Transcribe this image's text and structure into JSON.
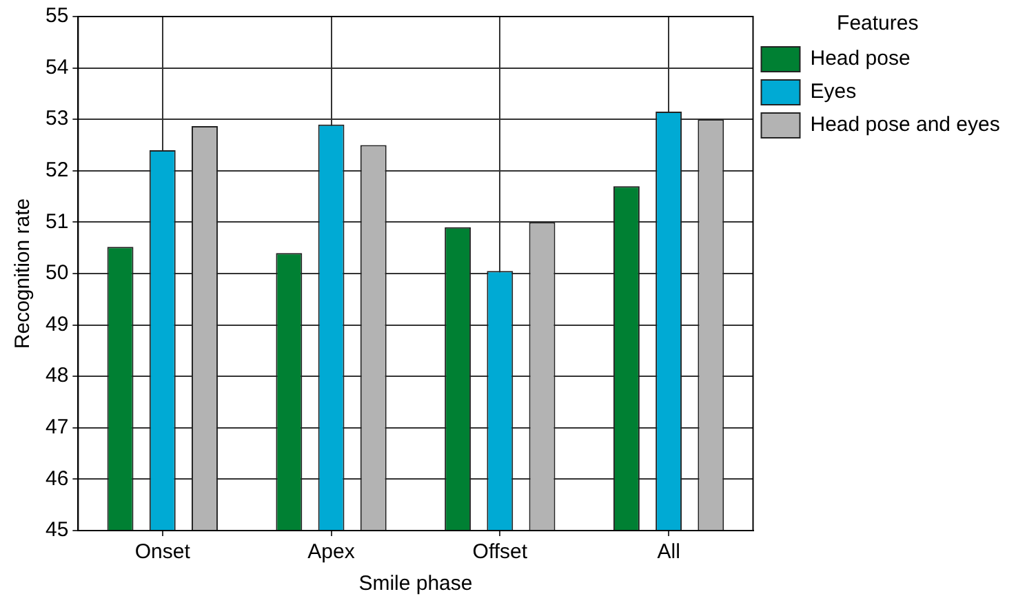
{
  "chart_data": {
    "type": "bar",
    "xlabel": "Smile phase",
    "ylabel": "Recognition rate",
    "legend_title": "Features",
    "categories": [
      "Onset",
      "Apex",
      "Offset",
      "All"
    ],
    "series": [
      {
        "name": "Head pose",
        "color": "#008033",
        "values": [
          50.52,
          50.4,
          50.9,
          51.7
        ]
      },
      {
        "name": "Eyes",
        "color": "#00aad4",
        "values": [
          52.4,
          52.9,
          50.05,
          53.15
        ]
      },
      {
        "name": "Head pose and eyes",
        "color": "#b3b3b3",
        "values": [
          52.87,
          52.5,
          51.0,
          53.0
        ]
      }
    ],
    "ylim": [
      45,
      55
    ],
    "yticks": [
      45,
      46,
      47,
      48,
      49,
      50,
      51,
      52,
      53,
      54,
      55
    ],
    "grid": true,
    "legend": "top right"
  }
}
